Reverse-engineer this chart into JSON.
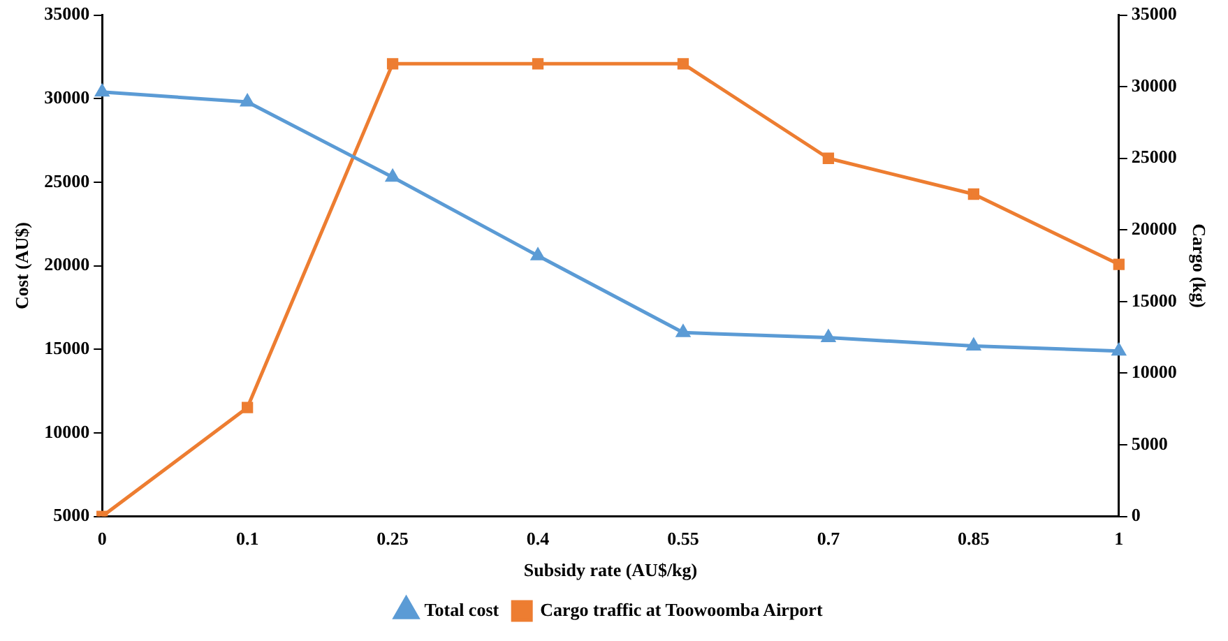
{
  "chart_data": {
    "type": "line",
    "xlabel": "Subsidy rate (AU$/kg)",
    "ylabel": "Cost (AU$)",
    "y2label": "Cargo (kg)",
    "categories": [
      "0",
      "0.1",
      "0.25",
      "0.4",
      "0.55",
      "0.7",
      "0.85",
      "1"
    ],
    "series": [
      {
        "name": "Total cost",
        "color": "#5b9bd5",
        "marker": "triangle",
        "values": [
          30400,
          29800,
          25300,
          20600,
          16000,
          15700,
          15200,
          14900
        ]
      },
      {
        "name": "Cargo traffic at Toowoomba Airport",
        "color": "#ed7d31",
        "marker": "square",
        "axis": "y2",
        "values": [
          0,
          7600,
          31600,
          31600,
          31600,
          25000,
          22500,
          17600
        ]
      }
    ],
    "ylim": [
      5000,
      35000
    ],
    "yticks": [
      5000,
      10000,
      15000,
      20000,
      25000,
      30000,
      35000
    ],
    "y2lim": [
      0,
      35000
    ],
    "y2ticks": [
      0,
      5000,
      10000,
      15000,
      20000,
      25000,
      30000,
      35000
    ],
    "grid": false,
    "legend": "bottom",
    "line_style": "solid"
  }
}
